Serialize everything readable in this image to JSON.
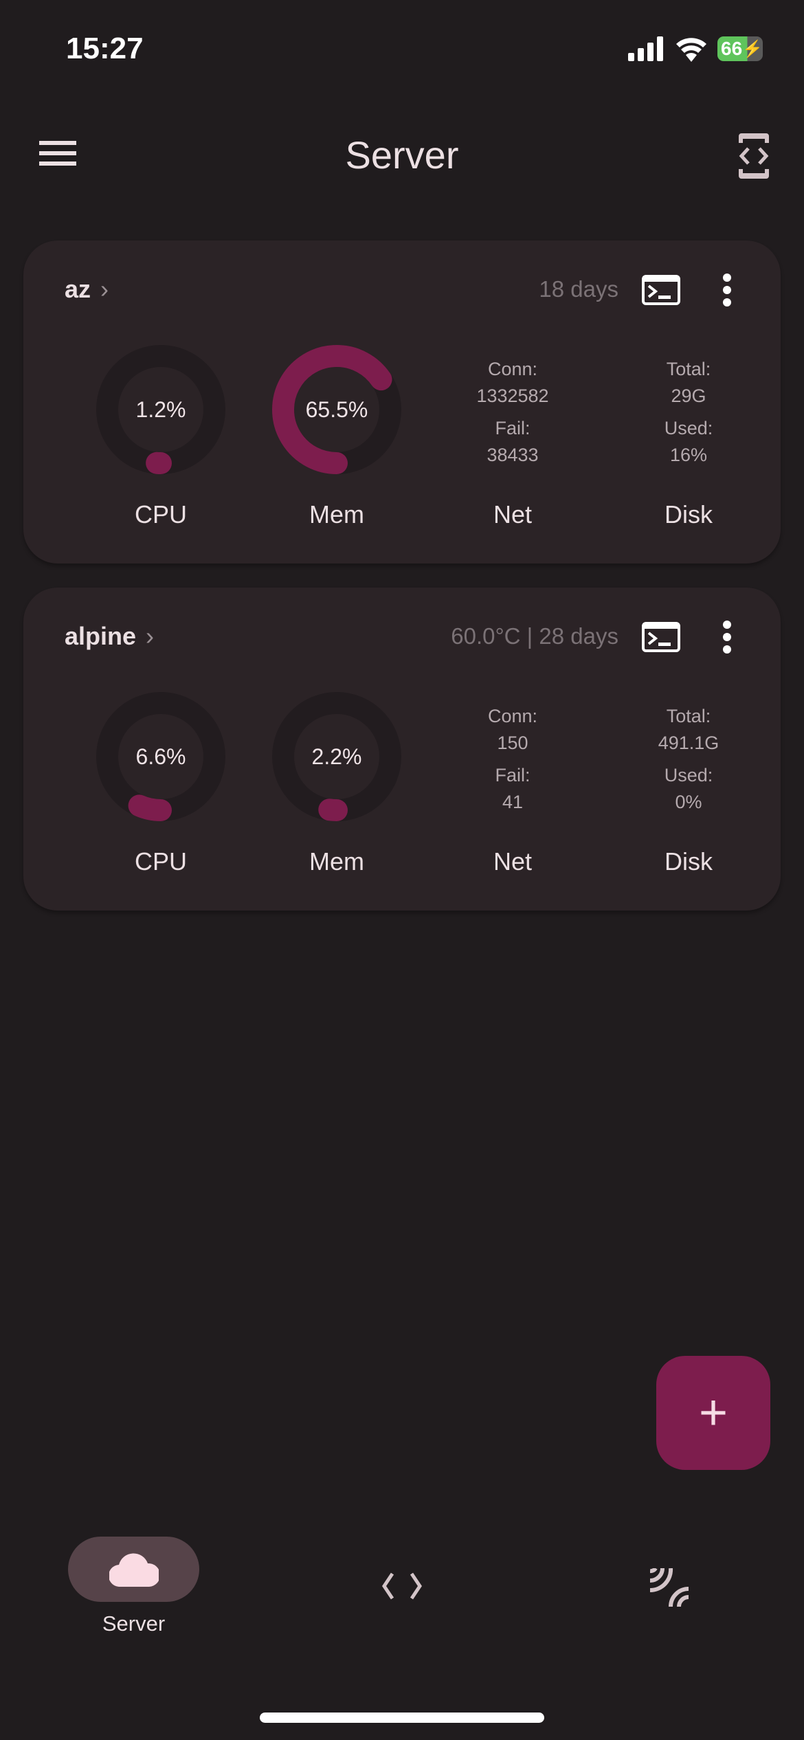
{
  "status_bar": {
    "time": "15:27",
    "battery": "66"
  },
  "app_bar": {
    "title": "Server",
    "menu_icon": "hamburger-icon",
    "action_icon": "code-device-icon"
  },
  "colors": {
    "accent": "#7d1d4d",
    "track": "#221c1f",
    "card": "#2b2326",
    "background": "#201c1e"
  },
  "servers": [
    {
      "name": "az",
      "meta": "18 days",
      "cpu": {
        "label": "CPU",
        "value": 1.2,
        "text": "1.2%"
      },
      "mem": {
        "label": "Mem",
        "value": 65.5,
        "text": "65.5%"
      },
      "net": {
        "label": "Net",
        "conn_label": "Conn:",
        "conn": "1332582",
        "fail_label": "Fail:",
        "fail": "38433"
      },
      "disk": {
        "label": "Disk",
        "total_label": "Total:",
        "total": "29G",
        "used_label": "Used:",
        "used": "16%"
      }
    },
    {
      "name": "alpine",
      "meta": "60.0°C | 28 days",
      "cpu": {
        "label": "CPU",
        "value": 6.6,
        "text": "6.6%"
      },
      "mem": {
        "label": "Mem",
        "value": 2.2,
        "text": "2.2%"
      },
      "net": {
        "label": "Net",
        "conn_label": "Conn:",
        "conn": "150",
        "fail_label": "Fail:",
        "fail": "41"
      },
      "disk": {
        "label": "Disk",
        "total_label": "Total:",
        "total": "491.1G",
        "used_label": "Used:",
        "used": "0%"
      }
    }
  ],
  "fab": {
    "label": "+"
  },
  "bottom_nav": {
    "items": [
      {
        "label": "Server",
        "icon": "cloud-icon",
        "active": true
      },
      {
        "label": "",
        "icon": "code-icon"
      },
      {
        "label": "",
        "icon": "ssh-signal-icon"
      }
    ]
  }
}
